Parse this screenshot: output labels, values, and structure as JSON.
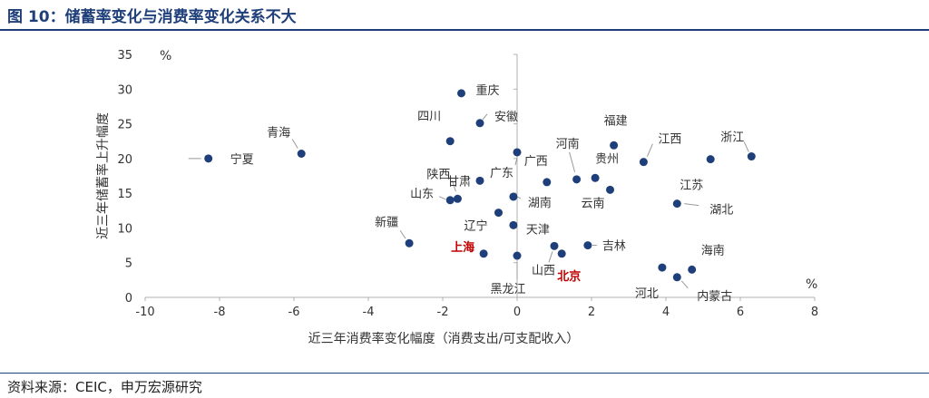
{
  "figure_title": "图 10：储蓄率变化与消费率变化关系不大",
  "source_text": "资料来源：CEIC，申万宏源研究",
  "colors": {
    "title": "#1f3f7a",
    "point": "#1f3f7a",
    "highlight": "#c00000",
    "axis": "#b0b0b0"
  },
  "chart_data": {
    "type": "scatter",
    "title": "储蓄率变化与消费率变化关系不大",
    "xlabel": "近三年消费率变化幅度（消费支出/可支配收入）",
    "ylabel": "近三年储蓄率上升幅度",
    "x_unit": "%",
    "y_unit": "%",
    "xlim": [
      -10,
      8
    ],
    "ylim": [
      0,
      35
    ],
    "xticks": [
      -10,
      -8,
      -6,
      -4,
      -2,
      0,
      2,
      4,
      6,
      8
    ],
    "yticks": [
      0,
      5,
      10,
      15,
      20,
      25,
      30,
      35
    ],
    "grid": false,
    "points": [
      {
        "name": "宁夏",
        "x": -8.3,
        "y": 20.0
      },
      {
        "name": "青海",
        "x": -5.8,
        "y": 20.7
      },
      {
        "name": "新疆",
        "x": -2.9,
        "y": 7.8
      },
      {
        "name": "重庆",
        "x": -1.5,
        "y": 29.4
      },
      {
        "name": "四川",
        "x": -1.8,
        "y": 22.5
      },
      {
        "name": "安徽",
        "x": -1.0,
        "y": 25.1
      },
      {
        "name": "陕西",
        "x": -1.6,
        "y": 14.2
      },
      {
        "name": "山东",
        "x": -1.8,
        "y": 14.0
      },
      {
        "name": "甘肃",
        "x": -1.0,
        "y": 16.8
      },
      {
        "name": "辽宁",
        "x": -0.5,
        "y": 12.2
      },
      {
        "name": "广东",
        "x": 0.0,
        "y": 20.9
      },
      {
        "name": "湖南",
        "x": -0.1,
        "y": 14.5
      },
      {
        "name": "天津",
        "x": -0.1,
        "y": 10.4
      },
      {
        "name": "上海",
        "x": -0.9,
        "y": 6.3
      },
      {
        "name": "黑龙江",
        "x": 0.0,
        "y": 6.0
      },
      {
        "name": "广西",
        "x": 0.8,
        "y": 16.6
      },
      {
        "name": "河南",
        "x": 1.6,
        "y": 17.0
      },
      {
        "name": "贵州",
        "x": 2.1,
        "y": 17.2
      },
      {
        "name": "云南",
        "x": 2.5,
        "y": 15.5
      },
      {
        "name": "福建",
        "x": 2.6,
        "y": 21.9
      },
      {
        "name": "山西",
        "x": 1.0,
        "y": 7.4
      },
      {
        "name": "北京",
        "x": 1.2,
        "y": 6.3
      },
      {
        "name": "吉林",
        "x": 1.9,
        "y": 7.5
      },
      {
        "name": "江西",
        "x": 3.4,
        "y": 19.5
      },
      {
        "name": "湖北",
        "x": 4.3,
        "y": 13.5
      },
      {
        "name": "江苏",
        "x": 5.2,
        "y": 19.9
      },
      {
        "name": "浙江",
        "x": 6.3,
        "y": 20.3
      },
      {
        "name": "海南",
        "x": 4.7,
        "y": 4.0
      },
      {
        "name": "河北",
        "x": 3.9,
        "y": 4.3
      },
      {
        "name": "内蒙古",
        "x": 4.3,
        "y": 2.9
      }
    ]
  }
}
